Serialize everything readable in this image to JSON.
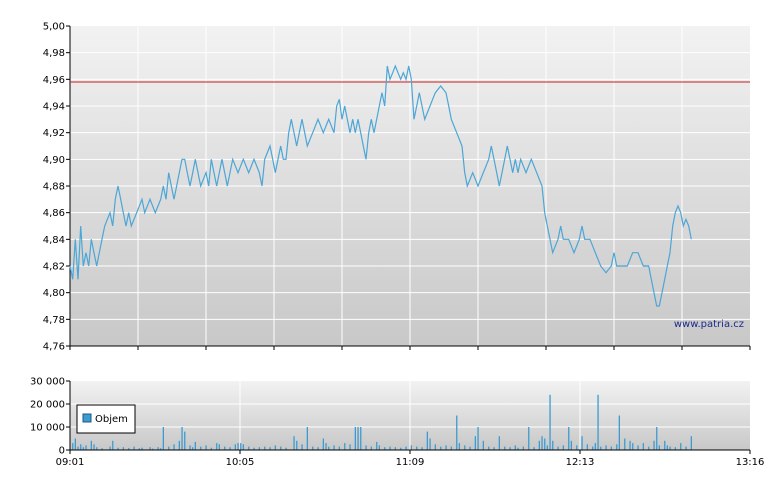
{
  "watermark": "www.patria.cz",
  "colors": {
    "price_line": "#4ca6d6",
    "reference_line": "#c81e1e",
    "volume_bar": "#3d9bd0",
    "grid": "#ffffff",
    "plot_top": "#f2f2f2",
    "plot_bottom": "#c8c8c8"
  },
  "chart_data": [
    {
      "type": "line",
      "name": "price",
      "x_ticks": [
        "09:01",
        "10:05",
        "11:09",
        "12:13",
        "13:16"
      ],
      "x_range_minutes": [
        541,
        796
      ],
      "ylim": [
        4.76,
        5.0
      ],
      "y_ticks": [
        "5,00",
        "4,98",
        "4,96",
        "4,94",
        "4,92",
        "4,90",
        "4,88",
        "4,86",
        "4,84",
        "4,82",
        "4,80",
        "4,78",
        "4,76"
      ],
      "reference_line": 4.958,
      "grid": true,
      "points": [
        [
          541,
          4.82
        ],
        [
          542,
          4.81
        ],
        [
          543,
          4.84
        ],
        [
          544,
          4.81
        ],
        [
          545,
          4.85
        ],
        [
          546,
          4.82
        ],
        [
          547,
          4.83
        ],
        [
          548,
          4.82
        ],
        [
          549,
          4.84
        ],
        [
          550,
          4.83
        ],
        [
          551,
          4.82
        ],
        [
          552,
          4.83
        ],
        [
          553,
          4.84
        ],
        [
          554,
          4.85
        ],
        [
          556,
          4.86
        ],
        [
          557,
          4.85
        ],
        [
          558,
          4.87
        ],
        [
          559,
          4.88
        ],
        [
          560,
          4.87
        ],
        [
          561,
          4.86
        ],
        [
          562,
          4.85
        ],
        [
          563,
          4.86
        ],
        [
          564,
          4.85
        ],
        [
          566,
          4.86
        ],
        [
          568,
          4.87
        ],
        [
          569,
          4.86
        ],
        [
          571,
          4.87
        ],
        [
          573,
          4.86
        ],
        [
          575,
          4.87
        ],
        [
          576,
          4.88
        ],
        [
          577,
          4.87
        ],
        [
          578,
          4.89
        ],
        [
          579,
          4.88
        ],
        [
          580,
          4.87
        ],
        [
          582,
          4.89
        ],
        [
          583,
          4.9
        ],
        [
          584,
          4.9
        ],
        [
          585,
          4.89
        ],
        [
          586,
          4.88
        ],
        [
          587,
          4.89
        ],
        [
          588,
          4.9
        ],
        [
          589,
          4.89
        ],
        [
          590,
          4.88
        ],
        [
          592,
          4.89
        ],
        [
          593,
          4.88
        ],
        [
          594,
          4.9
        ],
        [
          595,
          4.89
        ],
        [
          596,
          4.88
        ],
        [
          597,
          4.89
        ],
        [
          598,
          4.9
        ],
        [
          599,
          4.89
        ],
        [
          600,
          4.88
        ],
        [
          602,
          4.9
        ],
        [
          604,
          4.89
        ],
        [
          606,
          4.9
        ],
        [
          608,
          4.89
        ],
        [
          610,
          4.9
        ],
        [
          612,
          4.89
        ],
        [
          613,
          4.88
        ],
        [
          614,
          4.9
        ],
        [
          616,
          4.91
        ],
        [
          617,
          4.9
        ],
        [
          618,
          4.89
        ],
        [
          619,
          4.9
        ],
        [
          620,
          4.91
        ],
        [
          621,
          4.9
        ],
        [
          622,
          4.9
        ],
        [
          623,
          4.92
        ],
        [
          624,
          4.93
        ],
        [
          625,
          4.92
        ],
        [
          626,
          4.91
        ],
        [
          627,
          4.92
        ],
        [
          628,
          4.93
        ],
        [
          629,
          4.92
        ],
        [
          630,
          4.91
        ],
        [
          632,
          4.92
        ],
        [
          634,
          4.93
        ],
        [
          636,
          4.92
        ],
        [
          638,
          4.93
        ],
        [
          640,
          4.92
        ],
        [
          641,
          4.94
        ],
        [
          642,
          4.945
        ],
        [
          643,
          4.93
        ],
        [
          644,
          4.94
        ],
        [
          645,
          4.93
        ],
        [
          646,
          4.92
        ],
        [
          647,
          4.93
        ],
        [
          648,
          4.92
        ],
        [
          649,
          4.93
        ],
        [
          650,
          4.92
        ],
        [
          651,
          4.91
        ],
        [
          652,
          4.9
        ],
        [
          653,
          4.92
        ],
        [
          654,
          4.93
        ],
        [
          655,
          4.92
        ],
        [
          656,
          4.93
        ],
        [
          657,
          4.94
        ],
        [
          658,
          4.95
        ],
        [
          659,
          4.94
        ],
        [
          660,
          4.97
        ],
        [
          661,
          4.96
        ],
        [
          662,
          4.965
        ],
        [
          663,
          4.97
        ],
        [
          664,
          4.965
        ],
        [
          665,
          4.96
        ],
        [
          666,
          4.965
        ],
        [
          667,
          4.96
        ],
        [
          668,
          4.97
        ],
        [
          669,
          4.96
        ],
        [
          670,
          4.93
        ],
        [
          671,
          4.94
        ],
        [
          672,
          4.95
        ],
        [
          673,
          4.94
        ],
        [
          674,
          4.93
        ],
        [
          676,
          4.94
        ],
        [
          678,
          4.95
        ],
        [
          680,
          4.955
        ],
        [
          682,
          4.95
        ],
        [
          683,
          4.94
        ],
        [
          684,
          4.93
        ],
        [
          686,
          4.92
        ],
        [
          688,
          4.91
        ],
        [
          689,
          4.89
        ],
        [
          690,
          4.88
        ],
        [
          692,
          4.89
        ],
        [
          694,
          4.88
        ],
        [
          696,
          4.89
        ],
        [
          698,
          4.9
        ],
        [
          699,
          4.91
        ],
        [
          700,
          4.9
        ],
        [
          701,
          4.89
        ],
        [
          702,
          4.88
        ],
        [
          703,
          4.89
        ],
        [
          704,
          4.9
        ],
        [
          705,
          4.91
        ],
        [
          706,
          4.9
        ],
        [
          707,
          4.89
        ],
        [
          708,
          4.9
        ],
        [
          709,
          4.89
        ],
        [
          710,
          4.9
        ],
        [
          712,
          4.89
        ],
        [
          714,
          4.9
        ],
        [
          716,
          4.89
        ],
        [
          718,
          4.88
        ],
        [
          719,
          4.86
        ],
        [
          720,
          4.85
        ],
        [
          721,
          4.84
        ],
        [
          722,
          4.83
        ],
        [
          724,
          4.84
        ],
        [
          725,
          4.85
        ],
        [
          726,
          4.84
        ],
        [
          728,
          4.84
        ],
        [
          730,
          4.83
        ],
        [
          732,
          4.84
        ],
        [
          733,
          4.85
        ],
        [
          734,
          4.84
        ],
        [
          736,
          4.84
        ],
        [
          738,
          4.83
        ],
        [
          740,
          4.82
        ],
        [
          742,
          4.815
        ],
        [
          744,
          4.82
        ],
        [
          745,
          4.83
        ],
        [
          746,
          4.82
        ],
        [
          748,
          4.82
        ],
        [
          750,
          4.82
        ],
        [
          752,
          4.83
        ],
        [
          754,
          4.83
        ],
        [
          756,
          4.82
        ],
        [
          758,
          4.82
        ],
        [
          759,
          4.81
        ],
        [
          760,
          4.8
        ],
        [
          761,
          4.79
        ],
        [
          762,
          4.79
        ],
        [
          763,
          4.8
        ],
        [
          764,
          4.81
        ],
        [
          765,
          4.82
        ],
        [
          766,
          4.83
        ],
        [
          767,
          4.85
        ],
        [
          768,
          4.86
        ],
        [
          769,
          4.865
        ],
        [
          770,
          4.86
        ],
        [
          771,
          4.85
        ],
        [
          772,
          4.855
        ],
        [
          773,
          4.85
        ],
        [
          774,
          4.84
        ]
      ]
    },
    {
      "type": "bar",
      "name": "volume",
      "legend": "Objem",
      "legend_position": "top-left",
      "ylim": [
        0,
        30000
      ],
      "y_ticks": [
        "30 000",
        "20 000",
        "10 000",
        "0"
      ],
      "grid": true,
      "bars": [
        [
          542,
          3000
        ],
        [
          543,
          5000
        ],
        [
          544,
          1500
        ],
        [
          545,
          2500
        ],
        [
          546,
          1200
        ],
        [
          547,
          2000
        ],
        [
          549,
          4000
        ],
        [
          550,
          2500
        ],
        [
          551,
          1200
        ],
        [
          553,
          800
        ],
        [
          556,
          1500
        ],
        [
          557,
          4000
        ],
        [
          559,
          1000
        ],
        [
          561,
          1200
        ],
        [
          563,
          900
        ],
        [
          565,
          1500
        ],
        [
          567,
          800
        ],
        [
          568,
          1000
        ],
        [
          571,
          1200
        ],
        [
          572,
          600
        ],
        [
          574,
          1200
        ],
        [
          575,
          800
        ],
        [
          576,
          10000
        ],
        [
          578,
          1500
        ],
        [
          580,
          2500
        ],
        [
          582,
          4000
        ],
        [
          583,
          10000
        ],
        [
          584,
          8000
        ],
        [
          586,
          2000
        ],
        [
          587,
          1200
        ],
        [
          588,
          3500
        ],
        [
          590,
          1500
        ],
        [
          592,
          2000
        ],
        [
          594,
          1000
        ],
        [
          596,
          3000
        ],
        [
          597,
          2500
        ],
        [
          599,
          1500
        ],
        [
          601,
          1200
        ],
        [
          603,
          2500
        ],
        [
          604,
          3000
        ],
        [
          605,
          3000
        ],
        [
          606,
          2500
        ],
        [
          608,
          1500
        ],
        [
          610,
          1000
        ],
        [
          612,
          1200
        ],
        [
          614,
          1500
        ],
        [
          616,
          1200
        ],
        [
          618,
          2000
        ],
        [
          620,
          1500
        ],
        [
          622,
          1000
        ],
        [
          625,
          6000
        ],
        [
          626,
          4000
        ],
        [
          628,
          2500
        ],
        [
          630,
          10000
        ],
        [
          632,
          1500
        ],
        [
          634,
          1200
        ],
        [
          636,
          5000
        ],
        [
          637,
          3000
        ],
        [
          638,
          1500
        ],
        [
          640,
          2000
        ],
        [
          642,
          1500
        ],
        [
          644,
          3000
        ],
        [
          646,
          2500
        ],
        [
          648,
          10000
        ],
        [
          649,
          10000
        ],
        [
          650,
          10000
        ],
        [
          652,
          2000
        ],
        [
          654,
          1500
        ],
        [
          656,
          3500
        ],
        [
          657,
          2000
        ],
        [
          659,
          1200
        ],
        [
          661,
          1500
        ],
        [
          663,
          1200
        ],
        [
          665,
          1000
        ],
        [
          667,
          1500
        ],
        [
          669,
          2000
        ],
        [
          671,
          1500
        ],
        [
          673,
          1200
        ],
        [
          675,
          8000
        ],
        [
          676,
          5000
        ],
        [
          678,
          2500
        ],
        [
          680,
          1500
        ],
        [
          682,
          2000
        ],
        [
          684,
          1500
        ],
        [
          686,
          15000
        ],
        [
          687,
          3000
        ],
        [
          689,
          2000
        ],
        [
          691,
          1500
        ],
        [
          693,
          6000
        ],
        [
          694,
          10000
        ],
        [
          696,
          4000
        ],
        [
          698,
          1500
        ],
        [
          700,
          1200
        ],
        [
          702,
          6000
        ],
        [
          704,
          1500
        ],
        [
          706,
          1200
        ],
        [
          708,
          2000
        ],
        [
          709,
          1000
        ],
        [
          711,
          1500
        ],
        [
          713,
          10000
        ],
        [
          715,
          1200
        ],
        [
          717,
          4000
        ],
        [
          718,
          6000
        ],
        [
          719,
          5000
        ],
        [
          720,
          2000
        ],
        [
          721,
          24000
        ],
        [
          722,
          4000
        ],
        [
          724,
          1500
        ],
        [
          726,
          2000
        ],
        [
          728,
          10000
        ],
        [
          729,
          4000
        ],
        [
          731,
          2000
        ],
        [
          733,
          6000
        ],
        [
          735,
          2500
        ],
        [
          737,
          1500
        ],
        [
          738,
          3000
        ],
        [
          739,
          24000
        ],
        [
          740,
          1500
        ],
        [
          742,
          2000
        ],
        [
          744,
          1500
        ],
        [
          746,
          2500
        ],
        [
          747,
          15000
        ],
        [
          749,
          5000
        ],
        [
          751,
          4000
        ],
        [
          752,
          3000
        ],
        [
          754,
          2000
        ],
        [
          756,
          3000
        ],
        [
          758,
          1500
        ],
        [
          760,
          4000
        ],
        [
          761,
          10000
        ],
        [
          762,
          2000
        ],
        [
          764,
          4000
        ],
        [
          765,
          2000
        ],
        [
          766,
          1500
        ],
        [
          768,
          1200
        ],
        [
          770,
          3000
        ],
        [
          772,
          1500
        ],
        [
          774,
          6000
        ]
      ]
    }
  ]
}
